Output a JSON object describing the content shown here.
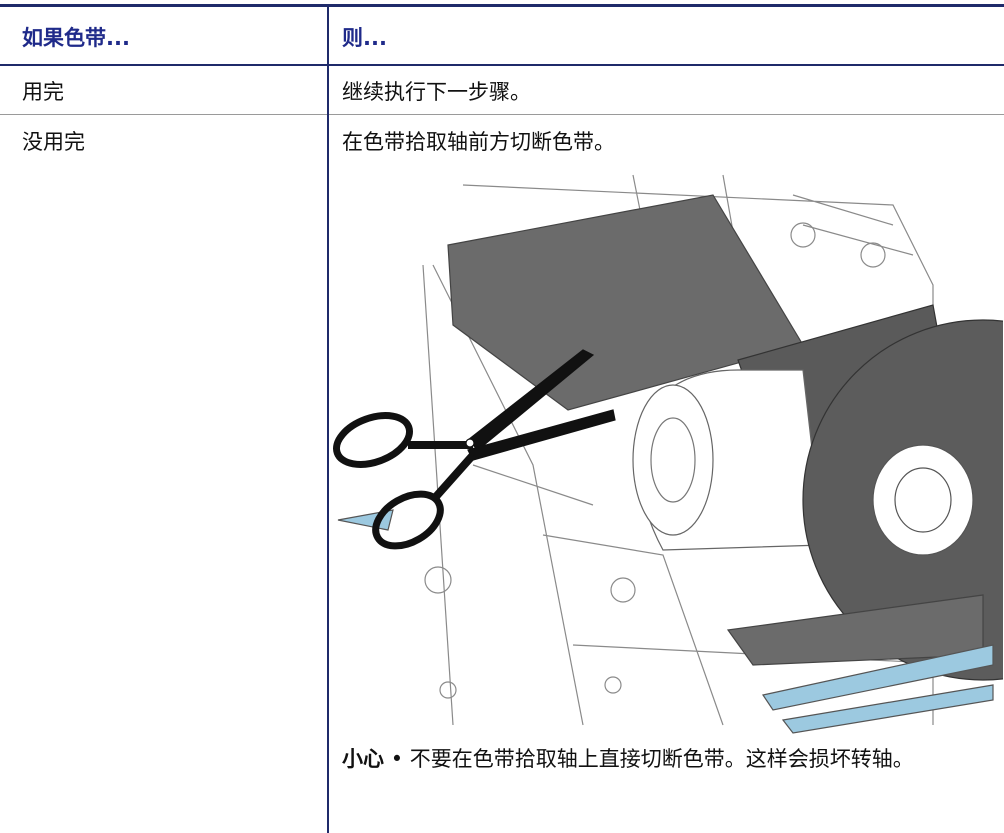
{
  "table": {
    "headers": [
      "如果色带...",
      "则..."
    ],
    "rows": [
      [
        "用完",
        "继续执行下一步骤。"
      ],
      [
        "没用完",
        "在色带拾取轴前方切断色带。"
      ]
    ]
  },
  "caution": {
    "label": "小心",
    "text": "• 不要在色带拾取轴上直接切断色带。这样会损坏转轴。"
  }
}
